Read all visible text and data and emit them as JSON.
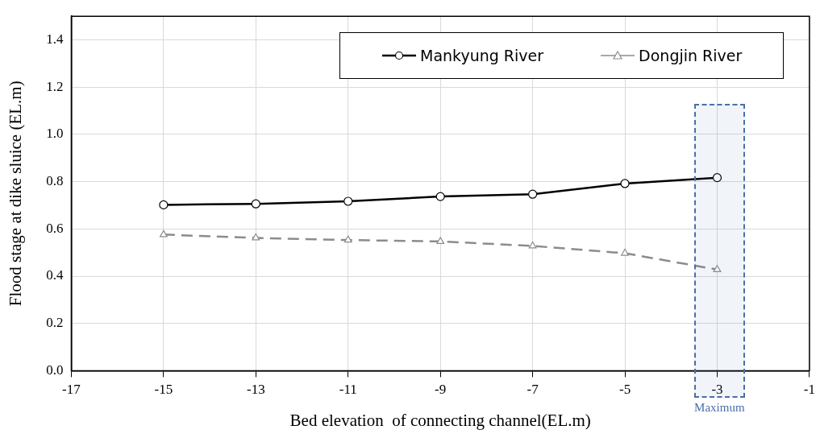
{
  "chart_data": {
    "type": "line",
    "xlabel": "Bed elevation  of connecting channel(EL.m)",
    "ylabel": "Flood stage at dike sluice (EL.m)",
    "x": [
      -15,
      -13,
      -11,
      -9,
      -7,
      -5,
      -3
    ],
    "series": [
      {
        "name": "Mankyung River",
        "color": "#000000",
        "marker": "circle",
        "line_style": "solid",
        "values": [
          0.702,
          0.706,
          0.717,
          0.737,
          0.747,
          0.792,
          0.817
        ]
      },
      {
        "name": "Dongjin River",
        "color": "#8c8c8c",
        "marker": "triangle",
        "line_style": "dashed",
        "values": [
          0.576,
          0.562,
          0.553,
          0.547,
          0.528,
          0.497,
          0.428
        ]
      }
    ],
    "xlim": [
      -17,
      -1
    ],
    "xticks": [
      -17,
      -15,
      -13,
      -11,
      -9,
      -7,
      -5,
      -3,
      -1
    ],
    "ylim": [
      0,
      1.5
    ],
    "yticks": [
      {
        "value": 0,
        "label": "0.0"
      },
      0.2,
      0.4,
      0.6,
      0.8,
      {
        "value": 1,
        "label": "1.0"
      },
      1.2,
      1.4
    ],
    "grid": true,
    "legend": "top right",
    "bands": [
      {
        "axis": "x",
        "from": -3.5,
        "to": -2.4,
        "label": "Maximum",
        "color": "#4a6fa8"
      }
    ]
  }
}
